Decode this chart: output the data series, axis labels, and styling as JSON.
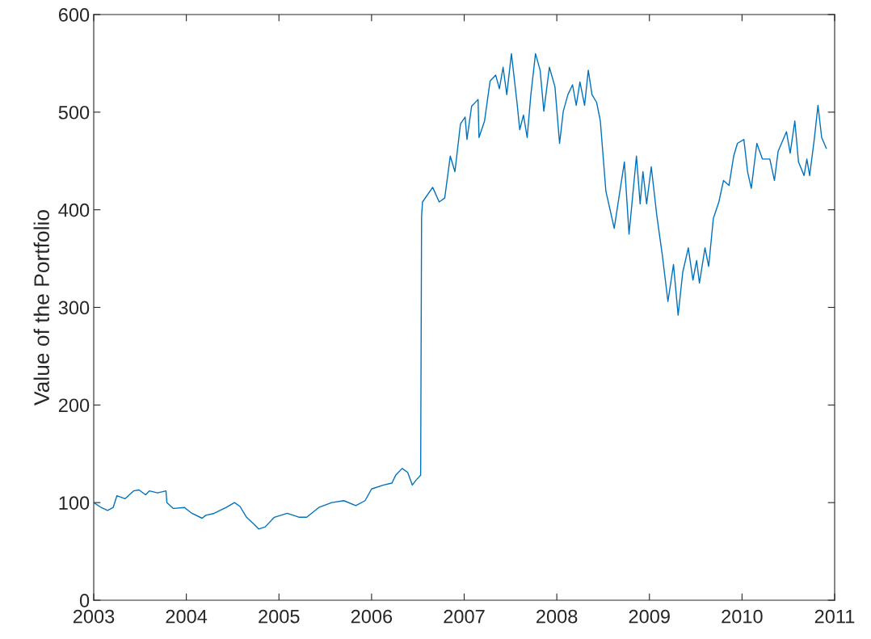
{
  "chart_data": {
    "type": "line",
    "ylabel": "Value of the Portfolio",
    "xlim": [
      2003,
      2011
    ],
    "xticks": [
      2003,
      2004,
      2005,
      2006,
      2007,
      2008,
      2009,
      2010,
      2011
    ],
    "ylim": [
      0,
      600
    ],
    "yticks": [
      0,
      100,
      200,
      300,
      400,
      500,
      600
    ],
    "grid": false,
    "series": [
      {
        "color": "#0072bd",
        "x": [
          2003.0,
          2003.08,
          2003.15,
          2003.21,
          2003.25,
          2003.34,
          2003.43,
          2003.49,
          2003.56,
          2003.6,
          2003.69,
          2003.78,
          2003.79,
          2003.86,
          2003.98,
          2004.06,
          2004.17,
          2004.21,
          2004.3,
          2004.43,
          2004.52,
          2004.58,
          2004.65,
          2004.74,
          2004.78,
          2004.85,
          2004.95,
          2005.09,
          2005.22,
          2005.3,
          2005.43,
          2005.57,
          2005.7,
          2005.83,
          2005.93,
          2006.0,
          2006.13,
          2006.22,
          2006.26,
          2006.33,
          2006.39,
          2006.44,
          2006.48,
          2006.53,
          2006.54,
          2006.55,
          2006.66,
          2006.73,
          2006.79,
          2006.85,
          2006.9,
          2006.96,
          2007.01,
          2007.03,
          2007.08,
          2007.15,
          2007.16,
          2007.22,
          2007.28,
          2007.34,
          2007.38,
          2007.42,
          2007.46,
          2007.51,
          2007.57,
          2007.6,
          2007.64,
          2007.68,
          2007.72,
          2007.77,
          2007.82,
          2007.86,
          2007.92,
          2007.98,
          2008.03,
          2008.07,
          2008.12,
          2008.17,
          2008.21,
          2008.25,
          2008.3,
          2008.34,
          2008.38,
          2008.43,
          2008.47,
          2008.53,
          2008.62,
          2008.73,
          2008.78,
          2008.86,
          2008.9,
          2008.93,
          2008.97,
          2009.02,
          2009.08,
          2009.14,
          2009.2,
          2009.26,
          2009.31,
          2009.36,
          2009.42,
          2009.47,
          2009.51,
          2009.54,
          2009.6,
          2009.64,
          2009.69,
          2009.75,
          2009.8,
          2009.86,
          2009.91,
          2009.95,
          2010.02,
          2010.06,
          2010.1,
          2010.16,
          2010.22,
          2010.3,
          2010.35,
          2010.39,
          2010.48,
          2010.52,
          2010.57,
          2010.61,
          2010.67,
          2010.7,
          2010.73,
          2010.78,
          2010.82,
          2010.86,
          2010.91
        ],
        "values": [
          100,
          95,
          92,
          95,
          107,
          104,
          112,
          113,
          108,
          112,
          110,
          112,
          100,
          94,
          95,
          89,
          84,
          87,
          89,
          95,
          100,
          96,
          85,
          77,
          73,
          75,
          85,
          89,
          85,
          85,
          95,
          100,
          102,
          97,
          102,
          114,
          118,
          120,
          128,
          135,
          131,
          118,
          123,
          128,
          393,
          408,
          423,
          408,
          412,
          455,
          439,
          488,
          495,
          472,
          506,
          513,
          474,
          491,
          532,
          538,
          524,
          546,
          518,
          560,
          510,
          482,
          497,
          474,
          518,
          560,
          543,
          501,
          546,
          526,
          468,
          501,
          518,
          528,
          507,
          531,
          507,
          543,
          518,
          510,
          491,
          419,
          381,
          449,
          375,
          455,
          406,
          439,
          406,
          444,
          394,
          353,
          306,
          344,
          292,
          336,
          361,
          328,
          348,
          325,
          361,
          342,
          391,
          408,
          430,
          425,
          455,
          468,
          472,
          439,
          422,
          468,
          452,
          452,
          430,
          460,
          480,
          458,
          491,
          449,
          435,
          452,
          435,
          472,
          507,
          474,
          463
        ]
      }
    ]
  }
}
